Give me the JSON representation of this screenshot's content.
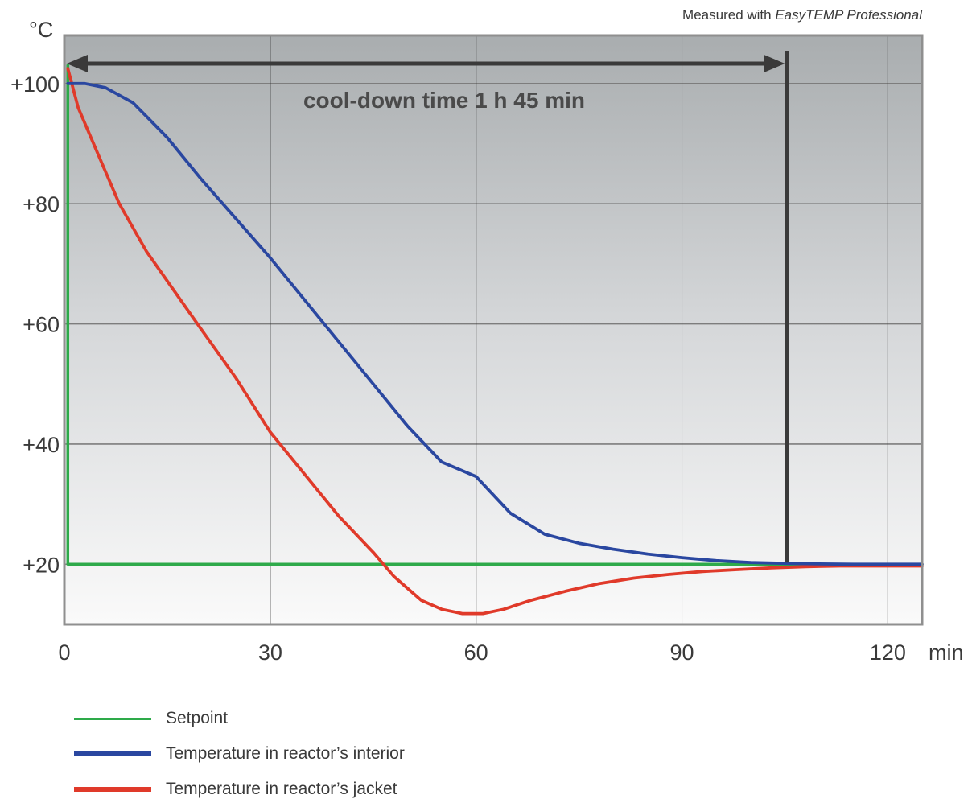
{
  "note": {
    "prefix": "Measured with ",
    "product": "EasyTEMP Professional"
  },
  "chart_data": {
    "type": "line",
    "title": "",
    "xlabel": "min",
    "ylabel": "°C",
    "xlim": [
      0,
      125
    ],
    "ylim": [
      10,
      108
    ],
    "x_ticks": [
      0,
      30,
      60,
      90,
      120
    ],
    "x_tick_labels": [
      "0",
      "30",
      "60",
      "90",
      "120"
    ],
    "y_ticks": [
      20,
      40,
      60,
      80,
      100
    ],
    "y_tick_labels": [
      "+20",
      "+40",
      "+60",
      "+80",
      "+100"
    ],
    "grid": true,
    "legend_position": "bottom-left",
    "annotation": {
      "text": "cool-down time 1 h 45 min",
      "x_start": 0,
      "x_end": 105,
      "y": 103
    },
    "series": [
      {
        "name": "Setpoint",
        "color": "#2eaa4a",
        "points": [
          [
            0.5,
            103
          ],
          [
            0.5,
            20
          ],
          [
            125,
            20
          ]
        ]
      },
      {
        "name": "Temperature in reactor’s interior",
        "color": "#2a47a0",
        "points": [
          [
            0.5,
            100
          ],
          [
            3,
            100
          ],
          [
            6,
            99.3
          ],
          [
            10,
            96.8
          ],
          [
            15,
            91
          ],
          [
            20,
            84
          ],
          [
            25,
            77.5
          ],
          [
            30,
            71
          ],
          [
            35,
            64
          ],
          [
            40,
            57
          ],
          [
            45,
            50
          ],
          [
            50,
            43
          ],
          [
            55,
            37
          ],
          [
            60,
            34.6
          ],
          [
            65,
            28.5
          ],
          [
            70,
            25
          ],
          [
            75,
            23.5
          ],
          [
            80,
            22.5
          ],
          [
            85,
            21.7
          ],
          [
            90,
            21.1
          ],
          [
            95,
            20.6
          ],
          [
            100,
            20.3
          ],
          [
            105,
            20.15
          ],
          [
            110,
            20.05
          ],
          [
            115,
            20
          ],
          [
            120,
            20
          ],
          [
            125,
            20
          ]
        ]
      },
      {
        "name": "Temperature in reactor’s jacket",
        "color": "#e03a2a",
        "points": [
          [
            0.5,
            102.5
          ],
          [
            2,
            96
          ],
          [
            5,
            88
          ],
          [
            8,
            80
          ],
          [
            12,
            72
          ],
          [
            16,
            65.5
          ],
          [
            20,
            59
          ],
          [
            25,
            51
          ],
          [
            30,
            42
          ],
          [
            35,
            35
          ],
          [
            40,
            28
          ],
          [
            45,
            22
          ],
          [
            48,
            18
          ],
          [
            52,
            14
          ],
          [
            55,
            12.5
          ],
          [
            58,
            11.8
          ],
          [
            61,
            11.8
          ],
          [
            64,
            12.5
          ],
          [
            68,
            14
          ],
          [
            73,
            15.5
          ],
          [
            78,
            16.8
          ],
          [
            83,
            17.7
          ],
          [
            88,
            18.3
          ],
          [
            93,
            18.8
          ],
          [
            98,
            19.1
          ],
          [
            103,
            19.4
          ],
          [
            108,
            19.6
          ],
          [
            113,
            19.7
          ],
          [
            118,
            19.7
          ],
          [
            125,
            19.7
          ]
        ]
      }
    ]
  }
}
